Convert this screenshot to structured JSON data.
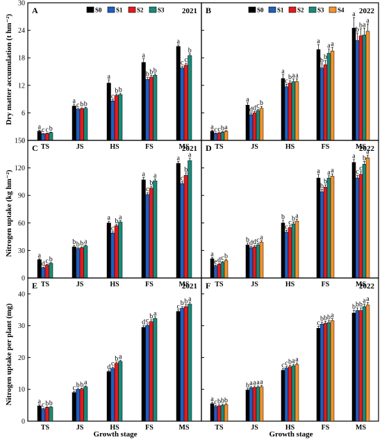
{
  "figure": {
    "ylabels": [
      "Dry matter accumulation (t hm⁻²)",
      "Nitrogen uptake (kg hm⁻²)",
      "Nitrogen uptake per plant (mg)"
    ],
    "xlabel": "Growth stage"
  },
  "colors": {
    "S0": "#000000",
    "S1": "#1f5fbf",
    "S2": "#e41a1c",
    "S3": "#1a8a7a",
    "S4": "#f5922a"
  },
  "chart_data": [
    {
      "panel": "A",
      "year": "2021",
      "type": "bar",
      "categories": [
        "TS",
        "JS",
        "HS",
        "FS",
        "MS"
      ],
      "legend": [
        "S0",
        "S1",
        "S2",
        "S3"
      ],
      "ylabel": "Dry matter accumulation (t hm⁻²)",
      "xlabel": "",
      "ylim": [
        0,
        30
      ],
      "yticks": [
        "0",
        "6",
        "12",
        "18",
        "24",
        "30"
      ],
      "series": [
        {
          "name": "S0",
          "values": [
            2.0,
            7.5,
            12.5,
            17.0,
            20.5
          ],
          "errors": [
            0.2,
            0.4,
            0.7,
            0.8,
            0.3
          ],
          "sig": [
            "a",
            "a",
            "a",
            "a",
            "a"
          ]
        },
        {
          "name": "S1",
          "values": [
            1.4,
            6.8,
            8.6,
            13.3,
            15.8
          ],
          "errors": [
            0.1,
            0.2,
            0.3,
            0.4,
            0.4
          ],
          "sig": [
            "c",
            "c",
            "c",
            "b",
            "c"
          ]
        },
        {
          "name": "S2",
          "values": [
            1.5,
            6.9,
            9.8,
            13.8,
            16.4
          ],
          "errors": [
            0.1,
            0.2,
            0.3,
            0.4,
            0.4
          ],
          "sig": [
            "c",
            "b",
            "b",
            "b",
            "c"
          ]
        },
        {
          "name": "S3",
          "values": [
            1.7,
            7.0,
            10.0,
            14.2,
            18.5
          ],
          "errors": [
            0.1,
            0.2,
            0.3,
            0.3,
            0.4
          ],
          "sig": [
            "b",
            "b",
            "b",
            "b",
            "b"
          ]
        }
      ]
    },
    {
      "panel": "B",
      "year": "2022",
      "type": "bar",
      "categories": [
        "TS",
        "JS",
        "HS",
        "FS",
        "MS"
      ],
      "legend": [
        "S0",
        "S1",
        "S2",
        "S3",
        "S4"
      ],
      "ylabel": "",
      "xlabel": "",
      "ylim": [
        0,
        30
      ],
      "yticks": [
        "0",
        "6",
        "12",
        "18",
        "24",
        "30"
      ],
      "series": [
        {
          "name": "S0",
          "values": [
            2.0,
            7.7,
            13.5,
            19.8,
            24.5
          ],
          "errors": [
            0.2,
            0.5,
            0.8,
            1.1,
            2.3
          ],
          "sig": [
            "a",
            "a",
            "a",
            "a",
            "a"
          ]
        },
        {
          "name": "S1",
          "values": [
            1.5,
            5.6,
            11.7,
            15.8,
            21.8
          ],
          "errors": [
            0.1,
            0.4,
            0.5,
            0.9,
            1.6
          ],
          "sig": [
            "c",
            "d",
            "c",
            "b",
            "b"
          ]
        },
        {
          "name": "S2",
          "values": [
            1.6,
            6.0,
            12.5,
            16.5,
            22.8
          ],
          "errors": [
            0.1,
            0.3,
            0.5,
            0.9,
            1.5
          ],
          "sig": [
            "c",
            "d",
            "b",
            "b",
            "b"
          ]
        },
        {
          "name": "S3",
          "values": [
            1.8,
            6.5,
            12.8,
            19.0,
            23.0
          ],
          "errors": [
            0.1,
            0.3,
            0.6,
            0.9,
            1.5
          ],
          "sig": [
            "b",
            "c",
            "a",
            "a",
            "a"
          ]
        },
        {
          "name": "S4",
          "values": [
            2.0,
            7.0,
            12.8,
            19.5,
            23.8
          ],
          "errors": [
            0.1,
            0.4,
            0.6,
            0.8,
            1.6
          ],
          "sig": [
            "a",
            "b",
            "a",
            "a",
            "a"
          ]
        }
      ]
    },
    {
      "panel": "C",
      "year": "2021",
      "type": "bar",
      "categories": [
        "TS",
        "JS",
        "HS",
        "FS",
        "MS"
      ],
      "legend": [
        "S0",
        "S1",
        "S2",
        "S3"
      ],
      "ylabel": "Nitrogen uptake (kg hm⁻²)",
      "xlabel": "",
      "ylim": [
        0,
        150
      ],
      "yticks": [
        "0",
        "30",
        "60",
        "90",
        "120",
        "150"
      ],
      "series": [
        {
          "name": "S0",
          "values": [
            20,
            34,
            60,
            107,
            125
          ],
          "errors": [
            1.0,
            1.5,
            2.0,
            2.5,
            2.0
          ],
          "sig": [
            "a",
            "b",
            "a",
            "a",
            "a"
          ]
        },
        {
          "name": "S1",
          "values": [
            11,
            32,
            49,
            91,
            103
          ],
          "errors": [
            0.8,
            1.0,
            1.5,
            2.0,
            2.0
          ],
          "sig": [
            "d",
            "b",
            "c",
            "c",
            "c"
          ]
        },
        {
          "name": "S2",
          "values": [
            14,
            33,
            57,
            98,
            112
          ],
          "errors": [
            0.8,
            1.0,
            1.5,
            2.0,
            2.5
          ],
          "sig": [
            "c",
            "b",
            "b",
            "b",
            "b"
          ]
        },
        {
          "name": "S3",
          "values": [
            16,
            35,
            61,
            106,
            128
          ],
          "errors": [
            0.8,
            1.0,
            1.5,
            2.0,
            2.5
          ],
          "sig": [
            "b",
            "a",
            "a",
            "a",
            "a"
          ]
        }
      ]
    },
    {
      "panel": "D",
      "year": "2022",
      "type": "bar",
      "categories": [
        "TS",
        "JS",
        "HS",
        "FS",
        "MS"
      ],
      "legend": [
        "S0",
        "S1",
        "S2",
        "S3",
        "S4"
      ],
      "ylabel": "",
      "xlabel": "",
      "ylim": [
        0,
        150
      ],
      "yticks": [
        "0",
        "30",
        "60",
        "90",
        "120",
        "150"
      ],
      "series": [
        {
          "name": "S0",
          "values": [
            21,
            36,
            60,
            109,
            126
          ],
          "errors": [
            1.5,
            2.0,
            3.0,
            4.0,
            3.0
          ],
          "sig": [
            "a",
            "b",
            "b",
            "a",
            "a"
          ]
        },
        {
          "name": "S1",
          "values": [
            13,
            33,
            50,
            94,
            109
          ],
          "errors": [
            1.0,
            1.5,
            2.0,
            2.5,
            3.0
          ],
          "sig": [
            "e",
            "d",
            "c",
            "b",
            "c"
          ]
        },
        {
          "name": "S2",
          "values": [
            15,
            34,
            55,
            99,
            113
          ],
          "errors": [
            1.0,
            1.5,
            2.0,
            2.5,
            3.0
          ],
          "sig": [
            "d",
            "d",
            "c",
            "b",
            "c"
          ]
        },
        {
          "name": "S3",
          "values": [
            17,
            36,
            59,
            109,
            124
          ],
          "errors": [
            1.0,
            1.5,
            2.0,
            2.5,
            3.0
          ],
          "sig": [
            "c",
            "c",
            "b",
            "a",
            "b"
          ]
        },
        {
          "name": "S4",
          "values": [
            19,
            39,
            62,
            111,
            131
          ],
          "errors": [
            1.0,
            1.5,
            2.0,
            2.5,
            3.0
          ],
          "sig": [
            "b",
            "a",
            "a",
            "a",
            "a"
          ]
        }
      ]
    },
    {
      "panel": "E",
      "year": "2021",
      "type": "bar",
      "categories": [
        "TS",
        "JS",
        "HS",
        "FS",
        "MS"
      ],
      "legend": [
        "S0",
        "S1",
        "S2",
        "S3"
      ],
      "ylabel": "Nitrogen uptake per plant (mg)",
      "xlabel": "Growth stage",
      "ylim": [
        0,
        45
      ],
      "yticks": [
        "0",
        "10",
        "20",
        "30",
        "40"
      ],
      "series": [
        {
          "name": "S0",
          "values": [
            4.8,
            9.0,
            15.6,
            29.5,
            34.5
          ],
          "errors": [
            0.3,
            0.4,
            0.4,
            0.5,
            0.5
          ],
          "sig": [
            "a",
            "c",
            "d",
            "d",
            "c"
          ]
        },
        {
          "name": "S1",
          "values": [
            3.8,
            10.0,
            16.6,
            30.1,
            35.5
          ],
          "errors": [
            0.2,
            0.3,
            0.4,
            0.5,
            0.5
          ],
          "sig": [
            "c",
            "b",
            "c",
            "c",
            "b"
          ]
        },
        {
          "name": "S2",
          "values": [
            4.3,
            10.1,
            18.2,
            31.3,
            36.0
          ],
          "errors": [
            0.2,
            0.3,
            0.4,
            0.6,
            0.6
          ],
          "sig": [
            "b",
            "b",
            "b",
            "b",
            "b"
          ]
        },
        {
          "name": "S3",
          "values": [
            4.4,
            10.8,
            18.8,
            32.3,
            36.8
          ],
          "errors": [
            0.2,
            0.3,
            0.4,
            0.5,
            0.6
          ],
          "sig": [
            "b",
            "a",
            "a",
            "a",
            "a"
          ]
        }
      ]
    },
    {
      "panel": "F",
      "year": "2022",
      "type": "bar",
      "categories": [
        "TS",
        "JS",
        "HS",
        "FS",
        "MS"
      ],
      "legend": [
        "S0",
        "S1",
        "S2",
        "S3",
        "S4"
      ],
      "ylabel": "",
      "xlabel": "Growth stage",
      "ylim": [
        0,
        45
      ],
      "yticks": [
        "0",
        "10",
        "20",
        "30",
        "40"
      ],
      "series": [
        {
          "name": "S0",
          "values": [
            5.5,
            9.8,
            16.0,
            29.2,
            34.0
          ],
          "errors": [
            0.4,
            0.4,
            0.5,
            0.6,
            0.8
          ],
          "sig": [
            "a",
            "b",
            "c",
            "c",
            "b"
          ]
        },
        {
          "name": "S1",
          "values": [
            4.6,
            10.5,
            16.7,
            30.5,
            34.8
          ],
          "errors": [
            0.3,
            0.4,
            0.5,
            0.6,
            0.8
          ],
          "sig": [
            "c",
            "a",
            "c",
            "b",
            "b"
          ]
        },
        {
          "name": "S2",
          "values": [
            4.8,
            10.6,
            17.1,
            30.8,
            34.8
          ],
          "errors": [
            0.3,
            0.4,
            0.5,
            0.6,
            0.8
          ],
          "sig": [
            "b",
            "a",
            "b",
            "b",
            "b"
          ]
        },
        {
          "name": "S3",
          "values": [
            5.0,
            10.7,
            17.4,
            31.0,
            36.0
          ],
          "errors": [
            0.3,
            0.4,
            0.5,
            0.6,
            0.8
          ],
          "sig": [
            "b",
            "a",
            "a",
            "b",
            "a"
          ]
        },
        {
          "name": "S4",
          "values": [
            5.2,
            10.8,
            17.8,
            31.6,
            36.5
          ],
          "errors": [
            0.3,
            0.4,
            0.5,
            0.6,
            0.8
          ],
          "sig": [
            "b",
            "a",
            "a",
            "a",
            "a"
          ]
        }
      ]
    }
  ]
}
